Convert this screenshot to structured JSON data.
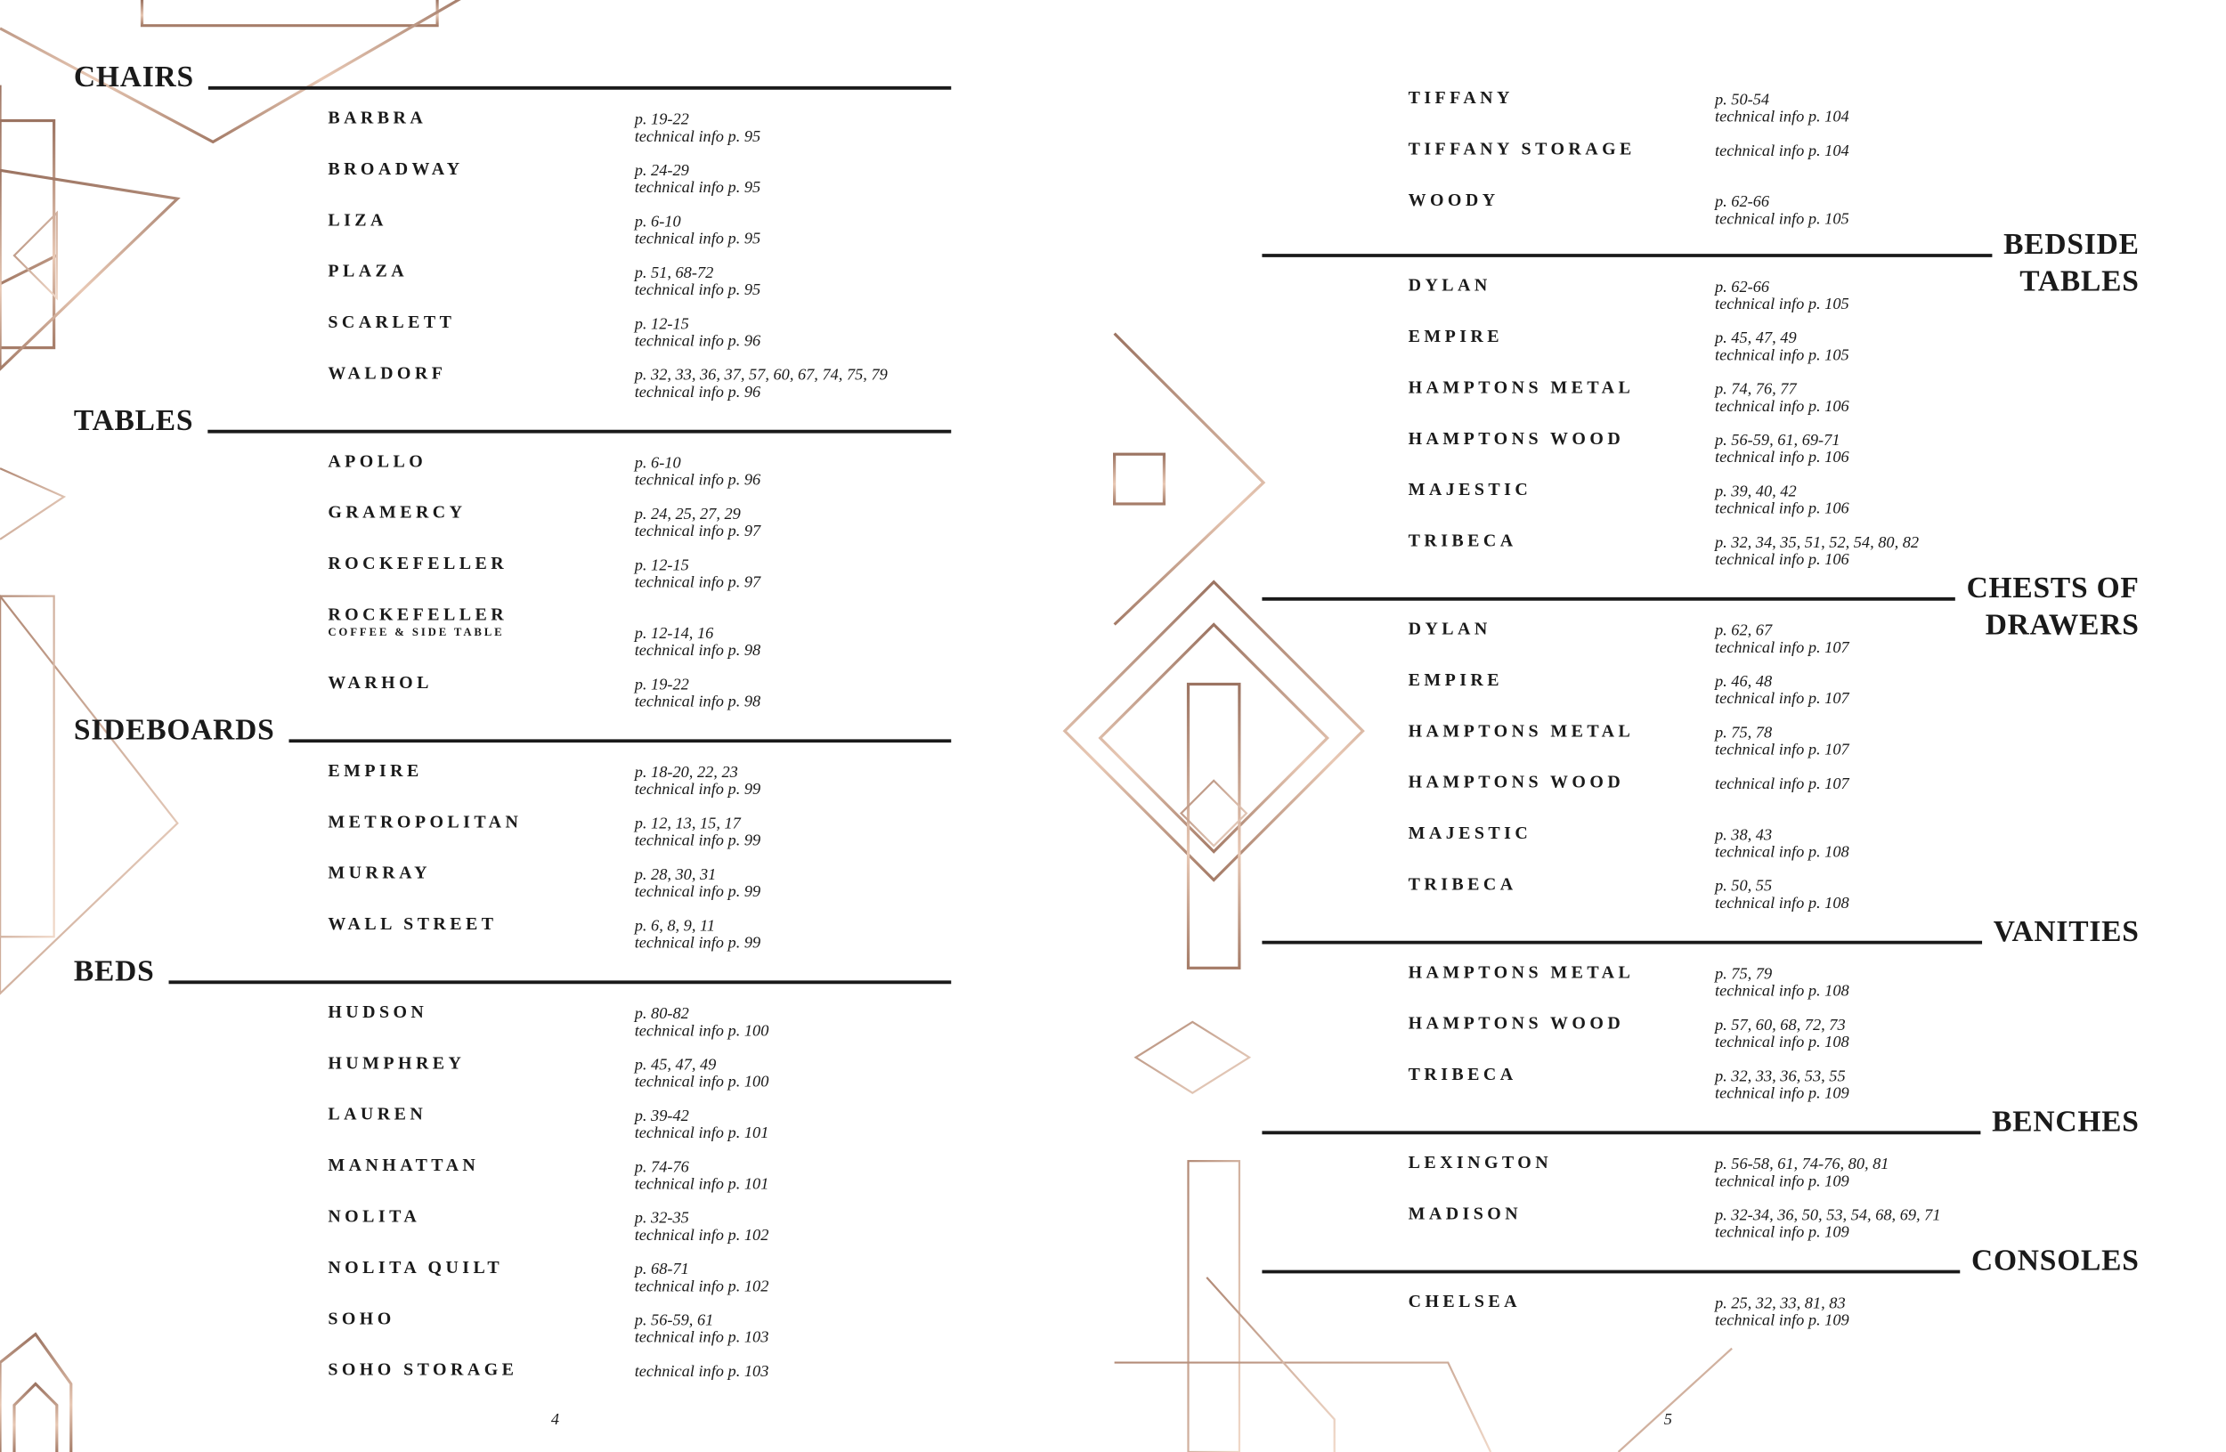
{
  "pages": [
    {
      "number": "4",
      "sections": [
        {
          "title": [
            "CHAIRS"
          ],
          "items": [
            {
              "name": "BARBRA",
              "pages": "p. 19-22",
              "tech": "technical info p. 95"
            },
            {
              "name": "BROADWAY",
              "pages": "p. 24-29",
              "tech": "technical info p. 95"
            },
            {
              "name": "LIZA",
              "pages": "p. 6-10",
              "tech": "technical info p. 95"
            },
            {
              "name": "PLAZA",
              "pages": "p. 51, 68-72",
              "tech": "technical info p. 95"
            },
            {
              "name": "SCARLETT",
              "pages": "p. 12-15",
              "tech": "technical info p. 96"
            },
            {
              "name": "WALDORF",
              "pages": "p. 32, 33, 36, 37, 57, 60, 67, 74, 75, 79",
              "tech": "technical info p. 96"
            }
          ]
        },
        {
          "title": [
            "TABLES"
          ],
          "items": [
            {
              "name": "APOLLO",
              "pages": "p. 6-10",
              "tech": "technical info p. 96"
            },
            {
              "name": "GRAMERCY",
              "pages": "p. 24, 25, 27, 29",
              "tech": "technical info p. 97"
            },
            {
              "name": "ROCKEFELLER",
              "pages": "p. 12-15",
              "tech": "technical info p. 97"
            },
            {
              "name": "ROCKEFELLER",
              "sub": "COFFEE & SIDE TABLE",
              "pages": "p. 12-14, 16",
              "tech": "technical info p. 98"
            },
            {
              "name": "WARHOL",
              "pages": "p. 19-22",
              "tech": "technical info p. 98"
            }
          ]
        },
        {
          "title": [
            "SIDEBOARDS"
          ],
          "items": [
            {
              "name": "EMPIRE",
              "pages": "p. 18-20, 22, 23",
              "tech": "technical info p. 99"
            },
            {
              "name": "METROPOLITAN",
              "pages": "p. 12, 13, 15, 17",
              "tech": "technical info p. 99"
            },
            {
              "name": "MURRAY",
              "pages": "p. 28, 30, 31",
              "tech": "technical info p. 99"
            },
            {
              "name": "WALL STREET",
              "pages": "p. 6, 8, 9, 11",
              "tech": "technical info p. 99"
            }
          ]
        },
        {
          "title": [
            "BEDS"
          ],
          "items": [
            {
              "name": "HUDSON",
              "pages": "p. 80-82",
              "tech": "technical info p. 100"
            },
            {
              "name": "HUMPHREY",
              "pages": "p. 45, 47, 49",
              "tech": "technical info p. 100"
            },
            {
              "name": "LAUREN",
              "pages": "p. 39-42",
              "tech": "technical info p. 101"
            },
            {
              "name": "MANHATTAN",
              "pages": "p. 74-76",
              "tech": "technical info p. 101"
            },
            {
              "name": "NOLITA",
              "pages": "p. 32-35",
              "tech": "technical info p. 102"
            },
            {
              "name": "NOLITA QUILT",
              "pages": "p. 68-71",
              "tech": "technical info p. 102"
            },
            {
              "name": "SOHO",
              "pages": "p. 56-59, 61",
              "tech": "technical info p. 103"
            },
            {
              "name": "SOHO STORAGE",
              "tech": "technical info p. 103"
            }
          ]
        }
      ]
    },
    {
      "number": "5",
      "continued": [
        {
          "name": "TIFFANY",
          "pages": "p. 50-54",
          "tech": "technical info p. 104"
        },
        {
          "name": "TIFFANY STORAGE",
          "tech": "technical info p. 104"
        },
        {
          "name": "WOODY",
          "pages": "p. 62-66",
          "tech": "technical info p. 105"
        }
      ],
      "sections": [
        {
          "title": [
            "BEDSIDE",
            "TABLES"
          ],
          "items": [
            {
              "name": "DYLAN",
              "pages": "p. 62-66",
              "tech": "technical info p. 105"
            },
            {
              "name": "EMPIRE",
              "pages": "p. 45, 47, 49",
              "tech": "technical info p. 105"
            },
            {
              "name": "HAMPTONS METAL",
              "pages": "p. 74, 76, 77",
              "tech": "technical info p. 106"
            },
            {
              "name": "HAMPTONS WOOD",
              "pages": "p. 56-59, 61, 69-71",
              "tech": "technical info p. 106"
            },
            {
              "name": "MAJESTIC",
              "pages": "p. 39, 40, 42",
              "tech": "technical info p. 106"
            },
            {
              "name": "TRIBECA",
              "pages": "p. 32, 34, 35, 51, 52, 54, 80, 82",
              "tech": "technical info p. 106"
            }
          ]
        },
        {
          "title": [
            "CHESTS OF",
            "DRAWERS"
          ],
          "items": [
            {
              "name": "DYLAN",
              "pages": "p. 62, 67",
              "tech": "technical info p. 107"
            },
            {
              "name": "EMPIRE",
              "pages": "p. 46, 48",
              "tech": "technical info p. 107"
            },
            {
              "name": "HAMPTONS METAL",
              "pages": "p. 75, 78",
              "tech": "technical info p. 107"
            },
            {
              "name": "HAMPTONS WOOD",
              "tech": "technical info p. 107"
            },
            {
              "name": "MAJESTIC",
              "pages": "p. 38, 43",
              "tech": "technical info p. 108"
            },
            {
              "name": "TRIBECA",
              "pages": "p. 50, 55",
              "tech": "technical info p. 108"
            }
          ]
        },
        {
          "title": [
            "VANITIES"
          ],
          "items": [
            {
              "name": "HAMPTONS METAL",
              "pages": "p. 75, 79",
              "tech": "technical info p. 108"
            },
            {
              "name": "HAMPTONS WOOD",
              "pages": "p. 57, 60, 68, 72, 73",
              "tech": "technical info p. 108"
            },
            {
              "name": "TRIBECA",
              "pages": "p. 32, 33, 36, 53, 55",
              "tech": "technical info p. 109"
            }
          ]
        },
        {
          "title": [
            "BENCHES"
          ],
          "items": [
            {
              "name": "LEXINGTON",
              "pages": "p. 56-58, 61, 74-76, 80, 81",
              "tech": "technical info p. 109"
            },
            {
              "name": "MADISON",
              "pages": "p. 32-34, 36, 50, 53, 54, 68, 69, 71",
              "tech": "technical info p. 109"
            }
          ]
        },
        {
          "title": [
            "CONSOLES"
          ],
          "items": [
            {
              "name": "CHELSEA",
              "pages": "p. 25, 32, 33, 81, 83",
              "tech": "technical info p. 109"
            }
          ]
        }
      ]
    }
  ]
}
